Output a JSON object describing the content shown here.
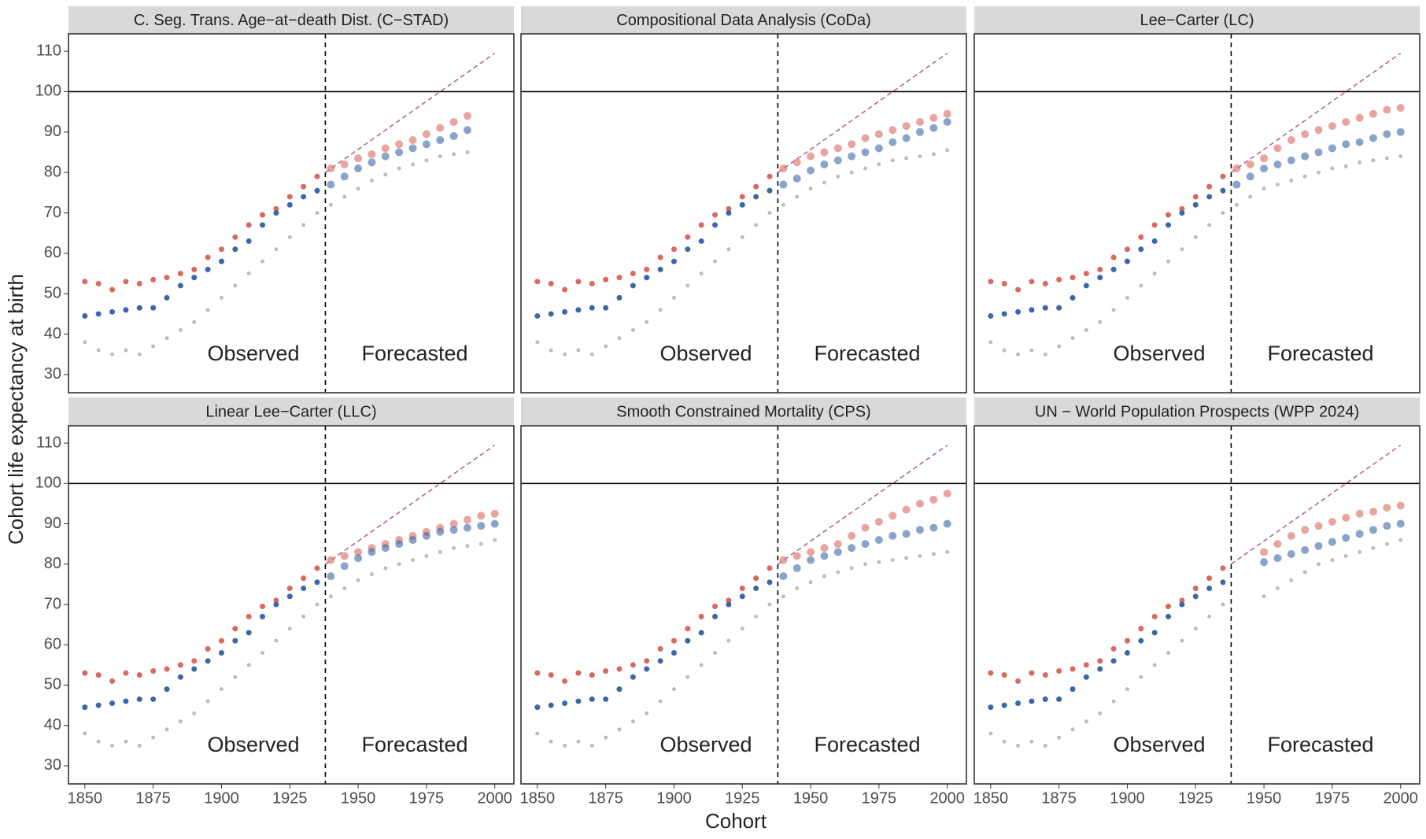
{
  "xlabel": "Cohort",
  "ylabel": "Cohort life expectancy at birth",
  "chart_data": [
    {
      "type": "scatter",
      "title": "C. Seg. Trans. Age−at−death Dist. (C−STAD)",
      "annotations": [
        "Observed",
        "Forecasted"
      ],
      "vline": 1938,
      "hline": 100,
      "diagonal": {
        "x": [
          1938,
          2000
        ],
        "y": [
          80,
          109.5
        ]
      },
      "x": [
        1850,
        1855,
        1860,
        1865,
        1870,
        1875,
        1880,
        1885,
        1890,
        1895,
        1900,
        1905,
        1910,
        1915,
        1920,
        1925,
        1930,
        1935,
        1940,
        1945,
        1950,
        1955,
        1960,
        1965,
        1970,
        1975,
        1980,
        1985,
        1990,
        1995,
        2000
      ],
      "xlim": [
        1844,
        2007
      ],
      "ylim": [
        25.5,
        114.3
      ],
      "yticks": [
        30,
        40,
        50,
        60,
        70,
        80,
        90,
        100,
        110
      ],
      "series": [
        {
          "color": "#bdbdbd",
          "values": [
            38,
            36,
            35,
            36,
            35,
            37,
            39,
            41,
            43,
            46,
            49,
            52,
            55,
            58,
            61,
            64,
            67,
            70,
            72,
            74,
            76,
            78,
            79.5,
            81,
            82,
            83,
            84,
            84.5,
            85,
            null,
            null
          ]
        },
        {
          "color": "#d9695f",
          "values": [
            53,
            52.5,
            51,
            53,
            52.5,
            53.5,
            54,
            55,
            56,
            59,
            61,
            64,
            67,
            69.5,
            71,
            74,
            76.5,
            79,
            81,
            82,
            83.5,
            84.5,
            86,
            87,
            88,
            89.5,
            91,
            92.5,
            94,
            null,
            null
          ]
        },
        {
          "color": "#3a67a8",
          "values": [
            44.5,
            45,
            45.5,
            46,
            46.5,
            46.5,
            49,
            52,
            54,
            56,
            58,
            61,
            63,
            67,
            70,
            72,
            74,
            75.5,
            77,
            79,
            81,
            82.5,
            84,
            85,
            86,
            87,
            88,
            89,
            90.5,
            null,
            null
          ]
        }
      ]
    },
    {
      "type": "scatter",
      "title": "Compositional Data Analysis (CoDa)",
      "annotations": [
        "Observed",
        "Forecasted"
      ],
      "vline": 1938,
      "hline": 100,
      "diagonal": {
        "x": [
          1938,
          2000
        ],
        "y": [
          80,
          109.5
        ]
      },
      "x": [
        1850,
        1855,
        1860,
        1865,
        1870,
        1875,
        1880,
        1885,
        1890,
        1895,
        1900,
        1905,
        1910,
        1915,
        1920,
        1925,
        1930,
        1935,
        1940,
        1945,
        1950,
        1955,
        1960,
        1965,
        1970,
        1975,
        1980,
        1985,
        1990,
        1995,
        2000
      ],
      "xlim": [
        1844,
        2007
      ],
      "ylim": [
        25.5,
        114.3
      ],
      "series": [
        {
          "color": "#bdbdbd",
          "values": [
            38,
            36,
            35,
            36,
            35,
            37,
            39,
            41,
            43,
            46,
            49,
            52,
            55,
            58,
            61,
            64,
            67,
            70,
            72,
            74,
            76,
            77.5,
            79,
            80,
            81,
            82,
            83,
            83.5,
            84,
            84.5,
            85.5
          ]
        },
        {
          "color": "#d9695f",
          "values": [
            53,
            52.5,
            51,
            53,
            52.5,
            53.5,
            54,
            55,
            56,
            59,
            61,
            64,
            67,
            69.5,
            71,
            74,
            76.5,
            79,
            81,
            82.5,
            84,
            85,
            86,
            87,
            88.5,
            89.5,
            90.5,
            91.5,
            92.5,
            93.5,
            94.5
          ]
        },
        {
          "color": "#3a67a8",
          "values": [
            44.5,
            45,
            45.5,
            46,
            46.5,
            46.5,
            49,
            52,
            54,
            56,
            58,
            61,
            63,
            67,
            70,
            72,
            74,
            75.5,
            77,
            78.5,
            80.5,
            82,
            83,
            84,
            85,
            86,
            87.5,
            88.5,
            90,
            91,
            92.5
          ]
        }
      ]
    },
    {
      "type": "scatter",
      "title": "Lee−Carter (LC)",
      "annotations": [
        "Observed",
        "Forecasted"
      ],
      "vline": 1938,
      "hline": 100,
      "diagonal": {
        "x": [
          1938,
          2000
        ],
        "y": [
          80,
          109.5
        ]
      },
      "x": [
        1850,
        1855,
        1860,
        1865,
        1870,
        1875,
        1880,
        1885,
        1890,
        1895,
        1900,
        1905,
        1910,
        1915,
        1920,
        1925,
        1930,
        1935,
        1940,
        1945,
        1950,
        1955,
        1960,
        1965,
        1970,
        1975,
        1980,
        1985,
        1990,
        1995,
        2000
      ],
      "xlim": [
        1844,
        2007
      ],
      "ylim": [
        25.5,
        114.3
      ],
      "series": [
        {
          "color": "#bdbdbd",
          "values": [
            38,
            36,
            35,
            36,
            35,
            37,
            39,
            41,
            43,
            46,
            49,
            52,
            55,
            58,
            61,
            64,
            67,
            70,
            72,
            74,
            76,
            77,
            78,
            79,
            80,
            81,
            81.5,
            82.5,
            83,
            83.5,
            84
          ]
        },
        {
          "color": "#d9695f",
          "values": [
            53,
            52.5,
            51,
            53,
            52.5,
            53.5,
            54,
            55,
            56,
            59,
            61,
            64,
            67,
            69.5,
            71,
            74,
            76.5,
            79,
            81,
            82,
            83.5,
            86,
            88,
            89.5,
            90.5,
            91.5,
            92.5,
            93.5,
            94.5,
            95.5,
            96
          ]
        },
        {
          "color": "#3a67a8",
          "values": [
            44.5,
            45,
            45.5,
            46,
            46.5,
            46.5,
            49,
            52,
            54,
            56,
            58,
            61,
            63,
            67,
            70,
            72,
            74,
            75.5,
            77,
            79,
            81,
            82,
            83,
            84,
            85,
            86,
            87,
            87.5,
            88.5,
            89.5,
            90
          ]
        }
      ]
    },
    {
      "type": "scatter",
      "title": "Linear Lee−Carter (LLC)",
      "annotations": [
        "Observed",
        "Forecasted"
      ],
      "vline": 1938,
      "hline": 100,
      "diagonal": {
        "x": [
          1938,
          2000
        ],
        "y": [
          80,
          109.5
        ]
      },
      "x": [
        1850,
        1855,
        1860,
        1865,
        1870,
        1875,
        1880,
        1885,
        1890,
        1895,
        1900,
        1905,
        1910,
        1915,
        1920,
        1925,
        1930,
        1935,
        1940,
        1945,
        1950,
        1955,
        1960,
        1965,
        1970,
        1975,
        1980,
        1985,
        1990,
        1995,
        2000
      ],
      "xlim": [
        1844,
        2007
      ],
      "ylim": [
        25.5,
        114.3
      ],
      "yticks": [
        30,
        40,
        50,
        60,
        70,
        80,
        90,
        100,
        110
      ],
      "xticks": [
        1850,
        1875,
        1900,
        1925,
        1950,
        1975,
        2000
      ],
      "series": [
        {
          "color": "#bdbdbd",
          "values": [
            38,
            36,
            35,
            36,
            35,
            37,
            39,
            41,
            43,
            46,
            49,
            52,
            55,
            58,
            61,
            64,
            67,
            70,
            72,
            74,
            76,
            77.5,
            79,
            80,
            81,
            82,
            83,
            84,
            84.5,
            85,
            86
          ]
        },
        {
          "color": "#d9695f",
          "values": [
            53,
            52.5,
            51,
            53,
            52.5,
            53.5,
            54,
            55,
            56,
            59,
            61,
            64,
            67,
            69.5,
            71,
            74,
            76.5,
            79,
            81,
            82,
            83,
            84,
            85,
            86,
            87,
            88,
            89,
            90,
            91,
            92,
            92.5
          ]
        },
        {
          "color": "#3a67a8",
          "values": [
            44.5,
            45,
            45.5,
            46,
            46.5,
            46.5,
            49,
            52,
            54,
            56,
            58,
            61,
            63,
            67,
            70,
            72,
            74,
            75.5,
            77,
            79.5,
            81.5,
            83,
            84,
            85,
            86,
            87,
            88,
            88.5,
            89,
            89.5,
            90
          ]
        }
      ]
    },
    {
      "type": "scatter",
      "title": "Smooth Constrained Mortality (CPS)",
      "annotations": [
        "Observed",
        "Forecasted"
      ],
      "vline": 1938,
      "hline": 100,
      "diagonal": {
        "x": [
          1938,
          2000
        ],
        "y": [
          80,
          109.5
        ]
      },
      "x": [
        1850,
        1855,
        1860,
        1865,
        1870,
        1875,
        1880,
        1885,
        1890,
        1895,
        1900,
        1905,
        1910,
        1915,
        1920,
        1925,
        1930,
        1935,
        1940,
        1945,
        1950,
        1955,
        1960,
        1965,
        1970,
        1975,
        1980,
        1985,
        1990,
        1995,
        2000
      ],
      "xlim": [
        1844,
        2007
      ],
      "ylim": [
        25.5,
        114.3
      ],
      "xticks": [
        1850,
        1875,
        1900,
        1925,
        1950,
        1975,
        2000
      ],
      "series": [
        {
          "color": "#bdbdbd",
          "values": [
            38,
            36,
            35,
            36,
            35,
            37,
            39,
            41,
            43,
            46,
            49,
            52,
            55,
            58,
            61,
            64,
            67,
            70,
            72,
            74,
            75.5,
            77,
            78,
            79,
            80,
            80.5,
            81,
            81.5,
            82,
            82.5,
            83
          ]
        },
        {
          "color": "#d9695f",
          "values": [
            53,
            52.5,
            51,
            53,
            52.5,
            53.5,
            54,
            55,
            56,
            59,
            61,
            64,
            67,
            69.5,
            71,
            74,
            76.5,
            79,
            81,
            82,
            83,
            84,
            85,
            87,
            89,
            90.5,
            92,
            93.5,
            95,
            96,
            97.5
          ]
        },
        {
          "color": "#3a67a8",
          "values": [
            44.5,
            45,
            45.5,
            46,
            46.5,
            46.5,
            49,
            52,
            54,
            56,
            58,
            61,
            63,
            67,
            70,
            72,
            74,
            75.5,
            77,
            79,
            81,
            82,
            83,
            84,
            85,
            86,
            87,
            87.5,
            88.5,
            89,
            90
          ]
        }
      ]
    },
    {
      "type": "scatter",
      "title": "UN − World Population Prospects (WPP 2024)",
      "annotations": [
        "Observed",
        "Forecasted"
      ],
      "vline": 1938,
      "hline": 100,
      "diagonal": {
        "x": [
          1938,
          2000
        ],
        "y": [
          80,
          109.5
        ]
      },
      "x": [
        1850,
        1855,
        1860,
        1865,
        1870,
        1875,
        1880,
        1885,
        1890,
        1895,
        1900,
        1905,
        1910,
        1915,
        1920,
        1925,
        1930,
        1935,
        1940,
        1945,
        1950,
        1955,
        1960,
        1965,
        1970,
        1975,
        1980,
        1985,
        1990,
        1995,
        2000
      ],
      "xlim": [
        1844,
        2007
      ],
      "ylim": [
        25.5,
        114.3
      ],
      "xticks": [
        1850,
        1875,
        1900,
        1925,
        1950,
        1975,
        2000
      ],
      "series": [
        {
          "color": "#bdbdbd",
          "values": [
            38,
            36,
            35,
            36,
            35,
            37,
            39,
            41,
            43,
            46,
            49,
            52,
            55,
            58,
            61,
            64,
            67,
            70,
            null,
            null,
            72,
            74,
            76,
            78,
            80,
            81,
            82,
            83,
            84,
            85,
            86
          ]
        },
        {
          "color": "#d9695f",
          "values": [
            53,
            52.5,
            51,
            53,
            52.5,
            53.5,
            54,
            55,
            56,
            59,
            61,
            64,
            67,
            69.5,
            71,
            74,
            76.5,
            79,
            null,
            null,
            83,
            85,
            87,
            88.5,
            89.5,
            90.5,
            91.5,
            92.5,
            93,
            94,
            94.5
          ]
        },
        {
          "color": "#3a67a8",
          "values": [
            44.5,
            45,
            45.5,
            46,
            46.5,
            46.5,
            49,
            52,
            54,
            56,
            58,
            61,
            63,
            67,
            70,
            72,
            74,
            75.5,
            null,
            null,
            80.5,
            81.5,
            82.5,
            83.5,
            84.5,
            85.5,
            86.5,
            87.5,
            88.5,
            89.5,
            90
          ]
        }
      ]
    }
  ]
}
